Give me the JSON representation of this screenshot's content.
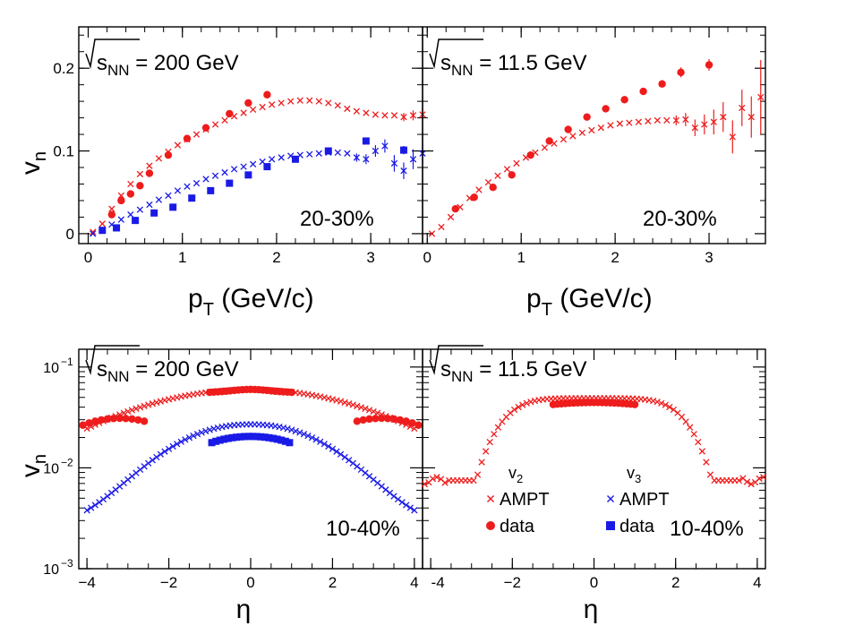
{
  "colors": {
    "v2": "#ee1c1c",
    "v3": "#1a1ae6",
    "axis": "#000000"
  },
  "labels": {
    "ylabel_top": "v",
    "ylabel_top_sub": "n",
    "xlabel_top": "p",
    "xlabel_top_sub": "T",
    "xlabel_top_unit": " (GeV/c)",
    "ylabel_bottom": "v",
    "ylabel_bottom_sub": "n",
    "xlabel_bottom": "η"
  },
  "legend": {
    "v2_header": "v",
    "v2_header_sub": "2",
    "v3_header": "v",
    "v3_header_sub": "3",
    "ampt": "AMPT",
    "data": "data"
  },
  "chart_data": [
    {
      "id": "pt_200",
      "type": "scatter",
      "energy_label": "s",
      "energy_sub": "NN",
      "energy_value": " = 200 GeV",
      "centrality": "20-30%",
      "xlim": [
        -0.1,
        3.55
      ],
      "ylim": [
        -0.012,
        0.25
      ],
      "yscale": "linear",
      "xticks": [
        0,
        1,
        2,
        3
      ],
      "xtick_labels": [
        "0",
        "1",
        "2",
        "3"
      ],
      "yticks": [
        0,
        0.1,
        0.2
      ],
      "ytick_labels": [
        "0",
        "0.1",
        "0.2"
      ],
      "series": [
        {
          "name": "v2 AMPT",
          "marker": "x",
          "color": "v2",
          "x": [
            0.05,
            0.15,
            0.25,
            0.35,
            0.45,
            0.55,
            0.65,
            0.75,
            0.85,
            0.95,
            1.05,
            1.15,
            1.25,
            1.35,
            1.45,
            1.55,
            1.65,
            1.75,
            1.85,
            1.95,
            2.05,
            2.15,
            2.25,
            2.35,
            2.45,
            2.55,
            2.65,
            2.75,
            2.85,
            2.95,
            3.05,
            3.15,
            3.25,
            3.35,
            3.45,
            3.55
          ],
          "y": [
            0.002,
            0.012,
            0.03,
            0.046,
            0.06,
            0.072,
            0.082,
            0.091,
            0.099,
            0.107,
            0.114,
            0.12,
            0.126,
            0.132,
            0.137,
            0.142,
            0.146,
            0.15,
            0.153,
            0.156,
            0.158,
            0.16,
            0.161,
            0.161,
            0.16,
            0.158,
            0.155,
            0.151,
            0.148,
            0.146,
            0.144,
            0.143,
            0.143,
            0.141,
            0.143,
            0.144
          ],
          "yerr": [
            0,
            0,
            0,
            0,
            0,
            0,
            0,
            0,
            0,
            0,
            0,
            0,
            0,
            0,
            0,
            0,
            0,
            0,
            0,
            0,
            0,
            0,
            0,
            0,
            0,
            0,
            0,
            0,
            0,
            0,
            0,
            0,
            0,
            0.005,
            0.006,
            0.007
          ]
        },
        {
          "name": "v2 data",
          "marker": "circle",
          "color": "v2",
          "x": [
            0.25,
            0.35,
            0.45,
            0.55,
            0.65,
            0.85,
            1.05,
            1.25,
            1.5,
            1.7,
            1.9
          ],
          "y": [
            0.023,
            0.04,
            0.048,
            0.058,
            0.073,
            0.095,
            0.115,
            0.128,
            0.145,
            0.158,
            0.168
          ],
          "yerr": [
            0,
            0,
            0,
            0,
            0,
            0,
            0,
            0,
            0,
            0,
            0
          ]
        },
        {
          "name": "v3 AMPT",
          "marker": "x",
          "color": "v3",
          "x": [
            0.05,
            0.15,
            0.25,
            0.35,
            0.45,
            0.55,
            0.65,
            0.75,
            0.85,
            0.95,
            1.05,
            1.15,
            1.25,
            1.35,
            1.45,
            1.55,
            1.65,
            1.75,
            1.85,
            1.95,
            2.05,
            2.15,
            2.25,
            2.35,
            2.45,
            2.55,
            2.65,
            2.75,
            2.85,
            2.95,
            3.05,
            3.15,
            3.25,
            3.35,
            3.45,
            3.55
          ],
          "y": [
            0.0,
            0.005,
            0.011,
            0.017,
            0.023,
            0.029,
            0.035,
            0.041,
            0.046,
            0.052,
            0.057,
            0.061,
            0.066,
            0.07,
            0.074,
            0.078,
            0.081,
            0.084,
            0.087,
            0.09,
            0.092,
            0.094,
            0.095,
            0.096,
            0.097,
            0.098,
            0.098,
            0.097,
            0.092,
            0.09,
            0.1,
            0.106,
            0.085,
            0.076,
            0.09,
            0.097
          ],
          "yerr": [
            0,
            0,
            0,
            0,
            0,
            0,
            0,
            0,
            0,
            0,
            0,
            0,
            0,
            0,
            0,
            0,
            0,
            0,
            0,
            0,
            0,
            0,
            0,
            0,
            0,
            0,
            0,
            0,
            0.005,
            0.006,
            0.007,
            0.008,
            0.01,
            0.01,
            0.012,
            0.012
          ]
        },
        {
          "name": "v3 data",
          "marker": "square",
          "color": "v3",
          "x": [
            0.15,
            0.3,
            0.5,
            0.7,
            0.9,
            1.1,
            1.3,
            1.5,
            1.7,
            1.9,
            2.2,
            2.55,
            2.95,
            3.35
          ],
          "y": [
            0.004,
            0.007,
            0.016,
            0.025,
            0.032,
            0.043,
            0.052,
            0.061,
            0.071,
            0.081,
            0.09,
            0.1,
            0.112,
            0.101
          ],
          "yerr": [
            0,
            0,
            0,
            0,
            0,
            0,
            0,
            0,
            0,
            0,
            0,
            0,
            0.004,
            0.005
          ]
        }
      ]
    },
    {
      "id": "pt_11p5",
      "type": "scatter",
      "energy_label": "s",
      "energy_sub": "NN",
      "energy_value": " = 11.5 GeV",
      "centrality": "20-30%",
      "xlim": [
        -0.05,
        3.6
      ],
      "ylim": [
        -0.012,
        0.25
      ],
      "yscale": "linear",
      "xticks": [
        0,
        1,
        2,
        3
      ],
      "xtick_labels": [
        "0",
        "1",
        "2",
        "3"
      ],
      "yticks": [
        0,
        0.1,
        0.2
      ],
      "ytick_labels": [],
      "series": [
        {
          "name": "v2 AMPT",
          "marker": "x",
          "color": "v2",
          "x": [
            0.05,
            0.15,
            0.25,
            0.35,
            0.45,
            0.55,
            0.65,
            0.75,
            0.85,
            0.95,
            1.05,
            1.15,
            1.25,
            1.35,
            1.45,
            1.55,
            1.65,
            1.75,
            1.85,
            1.95,
            2.05,
            2.15,
            2.25,
            2.35,
            2.45,
            2.55,
            2.65,
            2.75,
            2.85,
            2.95,
            3.05,
            3.15,
            3.25,
            3.35,
            3.45,
            3.55
          ],
          "y": [
            0.0,
            0.008,
            0.02,
            0.032,
            0.043,
            0.053,
            0.062,
            0.07,
            0.078,
            0.085,
            0.092,
            0.098,
            0.104,
            0.109,
            0.114,
            0.118,
            0.122,
            0.125,
            0.128,
            0.131,
            0.133,
            0.134,
            0.135,
            0.136,
            0.137,
            0.137,
            0.137,
            0.138,
            0.128,
            0.132,
            0.135,
            0.141,
            0.117,
            0.152,
            0.141,
            0.165
          ],
          "yerr": [
            0,
            0,
            0,
            0,
            0,
            0,
            0,
            0,
            0,
            0,
            0,
            0,
            0,
            0,
            0,
            0,
            0,
            0,
            0,
            0,
            0,
            0,
            0,
            0,
            0,
            0,
            0.006,
            0.008,
            0.01,
            0.012,
            0.015,
            0.018,
            0.02,
            0.022,
            0.025,
            0.045
          ]
        },
        {
          "name": "v2 data",
          "marker": "circle",
          "color": "v2",
          "x": [
            0.3,
            0.5,
            0.7,
            0.9,
            1.1,
            1.3,
            1.5,
            1.7,
            1.9,
            2.1,
            2.3,
            2.5,
            2.7,
            3.0
          ],
          "y": [
            0.03,
            0.044,
            0.056,
            0.071,
            0.095,
            0.112,
            0.126,
            0.141,
            0.151,
            0.162,
            0.172,
            0.181,
            0.195,
            0.204
          ],
          "yerr": [
            0,
            0,
            0,
            0,
            0,
            0,
            0,
            0,
            0,
            0,
            0,
            0.004,
            0.006,
            0.007
          ]
        }
      ]
    },
    {
      "id": "eta_200",
      "type": "scatter",
      "energy_label": "s",
      "energy_sub": "NN",
      "energy_value": " = 200 GeV",
      "centrality": "10-40%",
      "xlim": [
        -4.2,
        4.2
      ],
      "ylim": [
        0.001,
        0.15
      ],
      "yscale": "log",
      "xticks": [
        -4,
        -2,
        0,
        2,
        4
      ],
      "xtick_labels": [
        "−4",
        "−2",
        "0",
        "2",
        "4"
      ],
      "yticks": [
        0.001,
        0.01,
        0.1
      ],
      "ytick_labels": [
        "10",
        "10",
        "10"
      ],
      "ytick_exponents": [
        "−3",
        "−2",
        "−1"
      ],
      "series": [
        {
          "name": "v2 AMPT",
          "marker": "x",
          "color": "v2",
          "kind": "ampt_v2_200"
        },
        {
          "name": "v2 data",
          "marker": "circle",
          "color": "v2",
          "kind": "data_v2_200"
        },
        {
          "name": "v3 AMPT",
          "marker": "x",
          "color": "v3",
          "kind": "ampt_v3_200"
        },
        {
          "name": "v3 data",
          "marker": "square",
          "color": "v3",
          "kind": "data_v3_200"
        }
      ]
    },
    {
      "id": "eta_11p5",
      "type": "scatter",
      "energy_label": "s",
      "energy_sub": "NN",
      "energy_value": " = 11.5 GeV",
      "centrality": "10-40%",
      "xlim": [
        -4.2,
        4.2
      ],
      "ylim": [
        0.001,
        0.15
      ],
      "yscale": "log",
      "xticks": [
        -4,
        -2,
        0,
        2,
        4
      ],
      "xtick_labels": [
        "-4",
        "−2",
        "0",
        "2",
        "4"
      ],
      "yticks": [
        0.001,
        0.01,
        0.1
      ],
      "ytick_labels": [],
      "series": [
        {
          "name": "v2 AMPT",
          "marker": "x",
          "color": "v2",
          "kind": "ampt_v2_11"
        },
        {
          "name": "v2 data",
          "marker": "circle",
          "color": "v2",
          "kind": "data_v2_11"
        }
      ]
    }
  ]
}
